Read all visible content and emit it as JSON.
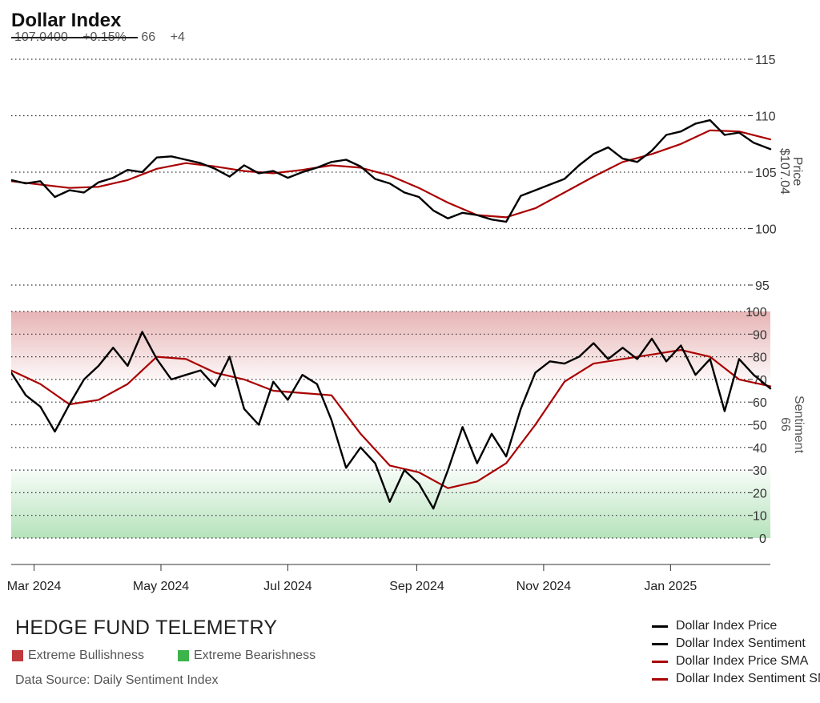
{
  "header": {
    "title": "Dollar Index",
    "price": "107.0400",
    "change": "+0.15%",
    "sentiment": "66",
    "sentiment_change": "+4"
  },
  "footer": {
    "brand": "HEDGE FUND TELEMETRY",
    "zone_bull": "Extreme Bullishness",
    "zone_bear": "Extreme Bearishness",
    "source": "Data Source: Daily Sentiment Index"
  },
  "colors": {
    "price": "#000000",
    "sentiment": "#000000",
    "sma": "#aa0000",
    "bull_zone": "#c0393b",
    "bear_zone": "#3cb44b"
  },
  "chart_data": {
    "type": "line",
    "x_ticks": [
      "Mar 2024",
      "May 2024",
      "Jul 2024",
      "Sep 2024",
      "Nov 2024",
      "Jan 2025"
    ],
    "x_tick_dates": [
      "2024-03-01",
      "2024-05-01",
      "2024-07-01",
      "2024-09-01",
      "2024-11-01",
      "2025-01-01"
    ],
    "x_range": [
      "2024-02-19",
      "2025-02-18"
    ],
    "price_axis": {
      "label": "Price",
      "current_label": "$107.04",
      "ticks": [
        95,
        100,
        105,
        110,
        115
      ],
      "range": [
        95,
        115
      ]
    },
    "sentiment_axis": {
      "label": "Sentiment",
      "current_label": "66",
      "ticks": [
        0,
        10,
        20,
        30,
        40,
        50,
        60,
        70,
        80,
        90,
        100
      ],
      "range": [
        0,
        100
      ],
      "extreme_bullish_above": 70,
      "extreme_bearish_below": 30
    },
    "grid": "horizontal dotted",
    "series": [
      {
        "name": "Dollar Index Price",
        "axis": "price",
        "points": [
          [
            "2024-02-19",
            104.3
          ],
          [
            "2024-02-26",
            104.0
          ],
          [
            "2024-03-04",
            104.2
          ],
          [
            "2024-03-11",
            102.8
          ],
          [
            "2024-03-18",
            103.4
          ],
          [
            "2024-03-25",
            103.2
          ],
          [
            "2024-04-01",
            104.1
          ],
          [
            "2024-04-08",
            104.5
          ],
          [
            "2024-04-15",
            105.2
          ],
          [
            "2024-04-22",
            105.0
          ],
          [
            "2024-04-29",
            106.3
          ],
          [
            "2024-05-06",
            106.4
          ],
          [
            "2024-05-13",
            106.1
          ],
          [
            "2024-05-20",
            105.8
          ],
          [
            "2024-05-27",
            105.3
          ],
          [
            "2024-06-03",
            104.6
          ],
          [
            "2024-06-10",
            105.6
          ],
          [
            "2024-06-17",
            104.9
          ],
          [
            "2024-06-24",
            105.1
          ],
          [
            "2024-07-01",
            104.5
          ],
          [
            "2024-07-08",
            105.0
          ],
          [
            "2024-07-15",
            105.4
          ],
          [
            "2024-07-22",
            105.9
          ],
          [
            "2024-07-29",
            106.1
          ],
          [
            "2024-08-05",
            105.5
          ],
          [
            "2024-08-12",
            104.4
          ],
          [
            "2024-08-19",
            104.0
          ],
          [
            "2024-08-26",
            103.2
          ],
          [
            "2024-09-02",
            102.8
          ],
          [
            "2024-09-09",
            101.6
          ],
          [
            "2024-09-16",
            100.9
          ],
          [
            "2024-09-23",
            101.4
          ],
          [
            "2024-09-30",
            101.2
          ],
          [
            "2024-10-07",
            100.8
          ],
          [
            "2024-10-14",
            100.6
          ],
          [
            "2024-10-21",
            102.9
          ],
          [
            "2024-10-28",
            103.4
          ],
          [
            "2024-11-04",
            103.9
          ],
          [
            "2024-11-11",
            104.4
          ],
          [
            "2024-11-18",
            105.6
          ],
          [
            "2024-11-25",
            106.6
          ],
          [
            "2024-12-02",
            107.2
          ],
          [
            "2024-12-09",
            106.2
          ],
          [
            "2024-12-16",
            105.9
          ],
          [
            "2024-12-23",
            106.9
          ],
          [
            "2024-12-30",
            108.3
          ],
          [
            "2025-01-06",
            108.6
          ],
          [
            "2025-01-13",
            109.3
          ],
          [
            "2025-01-20",
            109.6
          ],
          [
            "2025-01-27",
            108.3
          ],
          [
            "2025-02-03",
            108.5
          ],
          [
            "2025-02-10",
            107.6
          ],
          [
            "2025-02-18",
            107.04
          ]
        ]
      },
      {
        "name": "Dollar Index Sentiment",
        "axis": "sentiment",
        "points": [
          [
            "2024-02-19",
            73
          ],
          [
            "2024-02-26",
            63
          ],
          [
            "2024-03-04",
            58
          ],
          [
            "2024-03-11",
            47
          ],
          [
            "2024-03-18",
            59
          ],
          [
            "2024-03-25",
            70
          ],
          [
            "2024-04-01",
            76
          ],
          [
            "2024-04-08",
            84
          ],
          [
            "2024-04-15",
            76
          ],
          [
            "2024-04-22",
            91
          ],
          [
            "2024-04-29",
            79
          ],
          [
            "2024-05-06",
            70
          ],
          [
            "2024-05-13",
            72
          ],
          [
            "2024-05-20",
            74
          ],
          [
            "2024-05-27",
            67
          ],
          [
            "2024-06-03",
            80
          ],
          [
            "2024-06-10",
            57
          ],
          [
            "2024-06-17",
            50
          ],
          [
            "2024-06-24",
            69
          ],
          [
            "2024-07-01",
            61
          ],
          [
            "2024-07-08",
            72
          ],
          [
            "2024-07-15",
            68
          ],
          [
            "2024-07-22",
            52
          ],
          [
            "2024-07-29",
            31
          ],
          [
            "2024-08-05",
            40
          ],
          [
            "2024-08-12",
            33
          ],
          [
            "2024-08-19",
            16
          ],
          [
            "2024-08-26",
            30
          ],
          [
            "2024-09-02",
            24
          ],
          [
            "2024-09-09",
            13
          ],
          [
            "2024-09-16",
            30
          ],
          [
            "2024-09-23",
            49
          ],
          [
            "2024-09-30",
            33
          ],
          [
            "2024-10-07",
            46
          ],
          [
            "2024-10-14",
            36
          ],
          [
            "2024-10-21",
            57
          ],
          [
            "2024-10-28",
            73
          ],
          [
            "2024-11-04",
            78
          ],
          [
            "2024-11-11",
            77
          ],
          [
            "2024-11-18",
            80
          ],
          [
            "2024-11-25",
            86
          ],
          [
            "2024-12-02",
            79
          ],
          [
            "2024-12-09",
            84
          ],
          [
            "2024-12-16",
            79
          ],
          [
            "2024-12-23",
            88
          ],
          [
            "2024-12-30",
            78
          ],
          [
            "2025-01-06",
            85
          ],
          [
            "2025-01-13",
            72
          ],
          [
            "2025-01-20",
            79
          ],
          [
            "2025-01-27",
            56
          ],
          [
            "2025-02-03",
            79
          ],
          [
            "2025-02-10",
            72
          ],
          [
            "2025-02-18",
            66
          ]
        ]
      },
      {
        "name": "Dollar Index Price SMA",
        "axis": "price",
        "points": [
          [
            "2024-02-19",
            104.2
          ],
          [
            "2024-03-04",
            103.9
          ],
          [
            "2024-03-18",
            103.6
          ],
          [
            "2024-04-01",
            103.7
          ],
          [
            "2024-04-15",
            104.3
          ],
          [
            "2024-04-29",
            105.3
          ],
          [
            "2024-05-13",
            105.8
          ],
          [
            "2024-05-27",
            105.5
          ],
          [
            "2024-06-10",
            105.1
          ],
          [
            "2024-06-24",
            104.9
          ],
          [
            "2024-07-08",
            105.2
          ],
          [
            "2024-07-22",
            105.6
          ],
          [
            "2024-08-05",
            105.4
          ],
          [
            "2024-08-19",
            104.7
          ],
          [
            "2024-09-02",
            103.6
          ],
          [
            "2024-09-16",
            102.3
          ],
          [
            "2024-09-30",
            101.2
          ],
          [
            "2024-10-14",
            101.0
          ],
          [
            "2024-10-28",
            101.8
          ],
          [
            "2024-11-11",
            103.2
          ],
          [
            "2024-11-25",
            104.6
          ],
          [
            "2024-12-09",
            105.9
          ],
          [
            "2024-12-23",
            106.6
          ],
          [
            "2025-01-06",
            107.5
          ],
          [
            "2025-01-20",
            108.7
          ],
          [
            "2025-02-03",
            108.6
          ],
          [
            "2025-02-18",
            107.9
          ]
        ]
      },
      {
        "name": "Dollar Index Sentiment SMA",
        "axis": "sentiment",
        "points": [
          [
            "2024-02-19",
            74
          ],
          [
            "2024-03-04",
            68
          ],
          [
            "2024-03-18",
            59
          ],
          [
            "2024-04-01",
            61
          ],
          [
            "2024-04-15",
            68
          ],
          [
            "2024-04-29",
            80
          ],
          [
            "2024-05-13",
            79
          ],
          [
            "2024-05-27",
            73
          ],
          [
            "2024-06-10",
            70
          ],
          [
            "2024-06-24",
            65
          ],
          [
            "2024-07-08",
            64
          ],
          [
            "2024-07-22",
            63
          ],
          [
            "2024-08-05",
            46
          ],
          [
            "2024-08-19",
            32
          ],
          [
            "2024-09-02",
            29
          ],
          [
            "2024-09-16",
            22
          ],
          [
            "2024-09-30",
            25
          ],
          [
            "2024-10-14",
            33
          ],
          [
            "2024-10-28",
            50
          ],
          [
            "2024-11-11",
            69
          ],
          [
            "2024-11-25",
            77
          ],
          [
            "2024-12-09",
            79
          ],
          [
            "2024-12-23",
            81
          ],
          [
            "2025-01-06",
            83
          ],
          [
            "2025-01-20",
            80
          ],
          [
            "2025-02-03",
            70
          ],
          [
            "2025-02-18",
            67
          ]
        ]
      }
    ]
  }
}
